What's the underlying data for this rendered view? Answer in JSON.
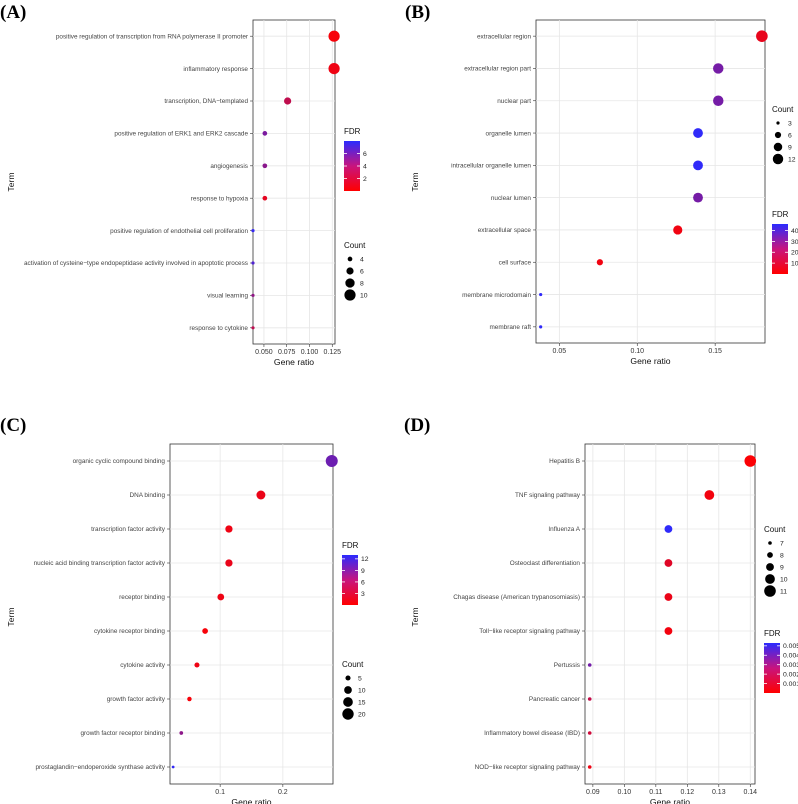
{
  "chart_data": [
    {
      "panel": "(A)",
      "type": "scatter",
      "xlabel": "Gene ratio",
      "ylabel": "Term",
      "xlim": [
        0.038,
        0.128
      ],
      "xticks": [
        0.05,
        0.075,
        0.1,
        0.125
      ],
      "xtick_labels": [
        "0.050",
        "0.075",
        "0.100",
        "0.125"
      ],
      "terms": [
        "positive regulation of transcription from RNA polymerase II promoter",
        "inflammatory response",
        "transcription, DNA−templated",
        "positive regulation of ERK1 and ERK2 cascade",
        "angiogenesis",
        "response to hypoxia",
        "positive regulation of endothelial cell proliferation",
        "activation of cysteine−type endopeptidase activity involved in apoptotic process",
        "visual learning",
        "response to cytokine"
      ],
      "gene_ratio": [
        0.127,
        0.127,
        0.076,
        0.051,
        0.051,
        0.051,
        0.038,
        0.038,
        0.038,
        0.038
      ],
      "count": [
        10,
        10,
        6,
        4,
        4,
        4,
        3,
        3,
        3,
        3
      ],
      "fdr": [
        0.3,
        0.6,
        2.4,
        5.0,
        4.4,
        1.0,
        7.6,
        6.6,
        4.2,
        2.5
      ],
      "fdr_legend": {
        "title": "FDR",
        "range": [
          0,
          8
        ],
        "ticks": [
          2,
          4,
          6
        ],
        "tick_labels": [
          "2",
          "4",
          "6"
        ]
      },
      "count_legend": {
        "title": "Count",
        "values": [
          4,
          6,
          8,
          10
        ],
        "labels": [
          "4",
          "6",
          "8",
          "10"
        ]
      },
      "size_range": [
        3,
        10
      ]
    },
    {
      "panel": "(B)",
      "type": "scatter",
      "xlabel": "Gene ratio",
      "ylabel": "Term",
      "xlim": [
        0.035,
        0.182
      ],
      "xticks": [
        0.05,
        0.1,
        0.15
      ],
      "xtick_labels": [
        "0.05",
        "0.10",
        "0.15"
      ],
      "terms": [
        "extracellular region",
        "extracellular region part",
        "nuclear part",
        "organelle lumen",
        "intracellular organelle lumen",
        "nuclear lumen",
        "extracellular space",
        "cell surface",
        "membrane microdomain",
        "membrane raft"
      ],
      "gene_ratio": [
        0.18,
        0.152,
        0.152,
        0.139,
        0.139,
        0.139,
        0.126,
        0.076,
        0.038,
        0.038
      ],
      "count": [
        14,
        12,
        12,
        11,
        11,
        11,
        10,
        6,
        3,
        3
      ],
      "fdr": [
        5,
        30,
        30,
        45,
        45,
        30,
        3,
        3,
        45,
        45
      ],
      "fdr_legend": {
        "title": "FDR",
        "range": [
          0,
          46
        ],
        "ticks": [
          10,
          20,
          30,
          40
        ],
        "tick_labels": [
          "10",
          "20",
          "30",
          "40"
        ]
      },
      "count_legend": {
        "title": "Count",
        "values": [
          3,
          6,
          9,
          12
        ],
        "labels": [
          "3",
          "6",
          "9",
          "12"
        ]
      },
      "size_range": [
        3,
        14
      ]
    },
    {
      "panel": "(C)",
      "type": "scatter",
      "xlabel": "Gene ratio",
      "ylabel": "Term",
      "xlim": [
        0.02,
        0.28
      ],
      "xticks": [
        0.1,
        0.2
      ],
      "xtick_labels": [
        "0.1",
        "0.2"
      ],
      "terms": [
        "organic cyclic compound binding",
        "DNA binding",
        "transcription factor activity",
        "nucleic acid binding transcription factor activity",
        "receptor binding",
        "cytokine receptor binding",
        "cytokine activity",
        "growth factor activity",
        "growth factor receptor binding",
        "prostaglandin−endoperoxide synthase activity"
      ],
      "gene_ratio": [
        0.278,
        0.165,
        0.114,
        0.114,
        0.101,
        0.076,
        0.063,
        0.051,
        0.038,
        0.025
      ],
      "count": [
        22,
        13,
        9,
        9,
        8,
        6,
        5,
        4,
        3,
        2
      ],
      "fdr": [
        9.0,
        1.2,
        1.0,
        1.3,
        1.0,
        0.5,
        1.0,
        0.5,
        7.0,
        12.5
      ],
      "fdr_legend": {
        "title": "FDR",
        "range": [
          0,
          13
        ],
        "ticks": [
          3,
          6,
          9,
          12
        ],
        "tick_labels": [
          "3",
          "6",
          "9",
          "12"
        ]
      },
      "count_legend": {
        "title": "Count",
        "values": [
          5,
          10,
          15,
          20
        ],
        "labels": [
          "5",
          "10",
          "15",
          "20"
        ]
      },
      "size_range": [
        2,
        22
      ]
    },
    {
      "panel": "(D)",
      "type": "scatter",
      "xlabel": "Gene ratio",
      "ylabel": "Term",
      "xlim": [
        0.0875,
        0.1415
      ],
      "xticks": [
        0.09,
        0.1,
        0.11,
        0.12,
        0.13,
        0.14
      ],
      "xtick_labels": [
        "0.09",
        "0.10",
        "0.11",
        "0.12",
        "0.13",
        "0.14"
      ],
      "terms": [
        "Hepatitis B",
        "TNF signaling pathway",
        "Influenza A",
        "Osteoclast differentiation",
        "Chagas disease (American trypanosomiasis)",
        "Toll−like receptor signaling pathway",
        "Pertussis",
        "Pancreatic cancer",
        "Inflammatory bowel disease (IBD)",
        "NOD−like receptor signaling pathway"
      ],
      "gene_ratio": [
        0.14,
        0.127,
        0.114,
        0.114,
        0.114,
        0.114,
        0.089,
        0.089,
        0.089,
        0.089
      ],
      "count": [
        11,
        10,
        9,
        9,
        9,
        9,
        7,
        7,
        7,
        7
      ],
      "fdr": [
        0.0001,
        0.0003,
        0.0052,
        0.0008,
        0.0005,
        0.0003,
        0.0035,
        0.0015,
        0.0012,
        0.0004
      ],
      "fdr_legend": {
        "title": "FDR",
        "range": [
          0,
          0.0053
        ],
        "ticks": [
          0.001,
          0.002,
          0.003,
          0.004,
          0.005
        ],
        "tick_labels": [
          "0.001",
          "0.002",
          "0.003",
          "0.004",
          "0.005"
        ]
      },
      "count_legend": {
        "title": "Count",
        "values": [
          7,
          8,
          9,
          10,
          11
        ],
        "labels": [
          "7",
          "8",
          "9",
          "10",
          "11"
        ]
      },
      "size_range": [
        7,
        11
      ]
    }
  ],
  "colors": {
    "low": "#ff0000",
    "high": "#2b2bff",
    "grid": "#e6e6e6",
    "panel_border": "#333333"
  }
}
